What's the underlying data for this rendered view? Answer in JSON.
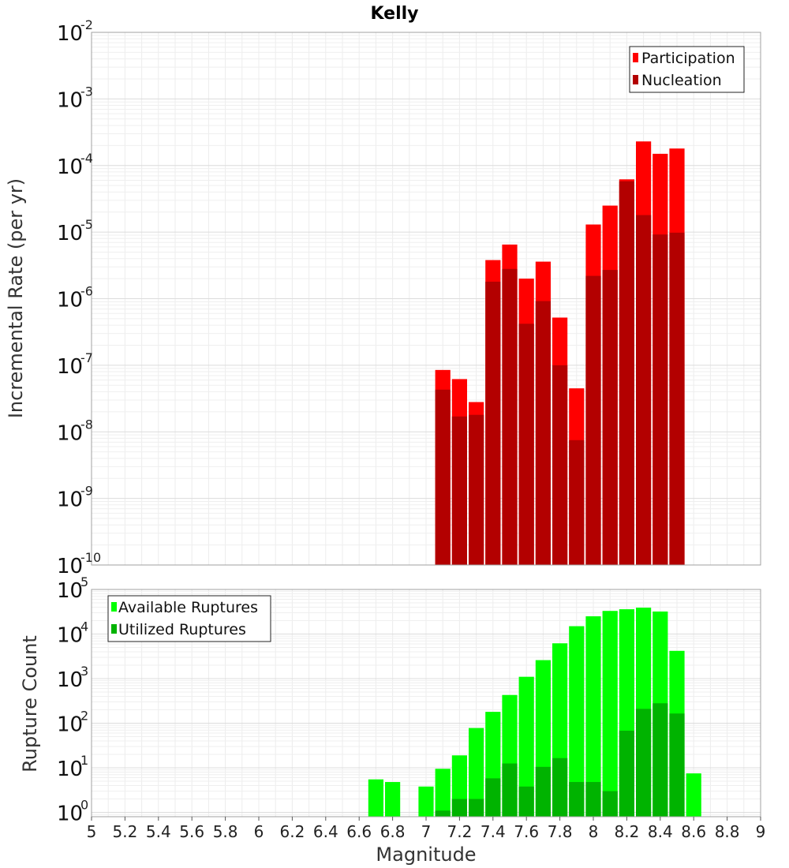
{
  "chart_data": [
    {
      "type": "bar",
      "title": "Kelly",
      "ylabel": "Incremental Rate (per yr)",
      "xlabel": "",
      "y_scale": "log",
      "ylim": [
        1e-10,
        0.01
      ],
      "xlim": [
        5,
        9
      ],
      "grid": true,
      "legend_position": "top-right",
      "y_ticks": [
        {
          "base": "10",
          "exp": "-10",
          "value": 1e-10
        },
        {
          "base": "10",
          "exp": "-9",
          "value": 1e-09
        },
        {
          "base": "10",
          "exp": "-8",
          "value": 1e-08
        },
        {
          "base": "10",
          "exp": "-7",
          "value": 1e-07
        },
        {
          "base": "10",
          "exp": "-6",
          "value": 1e-06
        },
        {
          "base": "10",
          "exp": "-5",
          "value": 1e-05
        },
        {
          "base": "10",
          "exp": "-4",
          "value": 0.0001
        },
        {
          "base": "10",
          "exp": "-3",
          "value": 0.001
        },
        {
          "base": "10",
          "exp": "-2",
          "value": 0.01
        }
      ],
      "x": [
        7.1,
        7.2,
        7.3,
        7.4,
        7.5,
        7.6,
        7.7,
        7.8,
        7.9,
        8.0,
        8.1,
        8.2,
        8.3,
        8.4,
        8.5
      ],
      "series": [
        {
          "name": "Participation",
          "color": "#ff0000",
          "values": [
            8.5e-08,
            6.2e-08,
            2.8e-08,
            3.8e-06,
            6.5e-06,
            2e-06,
            3.6e-06,
            5.2e-07,
            4.5e-08,
            1.3e-05,
            2.5e-05,
            6.2e-05,
            0.00023,
            0.00015,
            0.00018
          ]
        },
        {
          "name": "Nucleation",
          "color": "#b30000",
          "values": [
            4.3e-08,
            1.7e-08,
            1.8e-08,
            1.8e-06,
            2.8e-06,
            4.2e-07,
            9.2e-07,
            1e-07,
            7.5e-09,
            2.2e-06,
            2.7e-06,
            5.8e-05,
            1.8e-05,
            9.2e-06,
            9.8e-06
          ]
        }
      ]
    },
    {
      "type": "bar",
      "title": "",
      "ylabel": "Rupture Count",
      "xlabel": "Magnitude",
      "y_scale": "log",
      "ylim": [
        0.8,
        100000.0
      ],
      "xlim": [
        5,
        9
      ],
      "grid": true,
      "legend_position": "top-left",
      "x_ticks": [
        "5",
        "5.2",
        "5.4",
        "5.6",
        "5.8",
        "6",
        "6.2",
        "6.4",
        "6.6",
        "6.8",
        "7",
        "7.2",
        "7.4",
        "7.6",
        "7.8",
        "8",
        "8.2",
        "8.4",
        "8.6",
        "8.8",
        "9"
      ],
      "y_ticks": [
        {
          "base": "10",
          "exp": "0",
          "value": 1
        },
        {
          "base": "10",
          "exp": "1",
          "value": 10
        },
        {
          "base": "10",
          "exp": "2",
          "value": 100
        },
        {
          "base": "10",
          "exp": "3",
          "value": 1000
        },
        {
          "base": "10",
          "exp": "4",
          "value": 10000
        },
        {
          "base": "10",
          "exp": "5",
          "value": 100000
        }
      ],
      "x": [
        6.7,
        6.8,
        6.9,
        7.0,
        7.1,
        7.2,
        7.3,
        7.4,
        7.5,
        7.6,
        7.7,
        7.8,
        7.9,
        8.0,
        8.1,
        8.2,
        8.3,
        8.4,
        8.5,
        8.6
      ],
      "series": [
        {
          "name": "Available Ruptures",
          "color": "#00ff00",
          "values": [
            5.5,
            4.8,
            null,
            3.8,
            9.5,
            19,
            78,
            180,
            430,
            1100,
            2600,
            6200,
            15000,
            25000,
            33000,
            36000,
            39000,
            32000,
            4200,
            7.5
          ]
        },
        {
          "name": "Utilized Ruptures",
          "color": "#00b300",
          "values": [
            null,
            null,
            null,
            null,
            1.1,
            2.0,
            2.0,
            5.8,
            12.5,
            3.8,
            10.5,
            16.5,
            4.8,
            4.8,
            3.0,
            68,
            210,
            280,
            165,
            null
          ]
        }
      ]
    }
  ]
}
